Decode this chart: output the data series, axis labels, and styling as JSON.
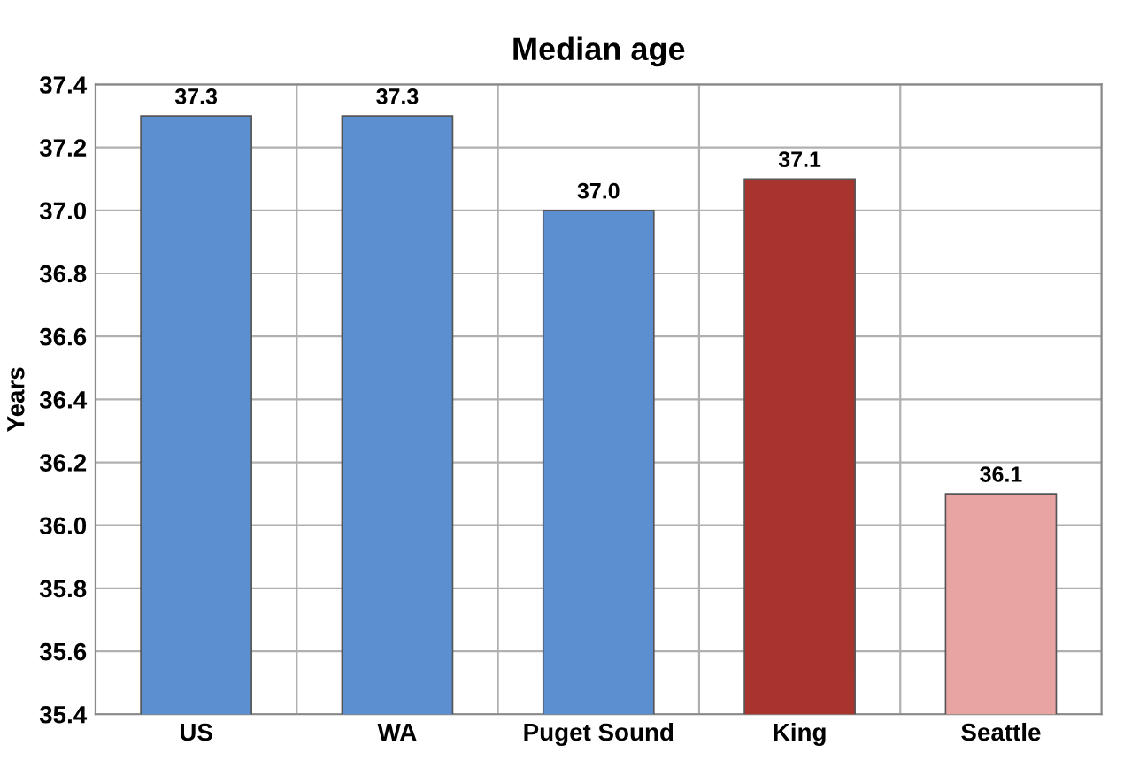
{
  "chart_data": {
    "type": "bar",
    "title": "Median age",
    "ylabel": "Years",
    "categories": [
      "US",
      "WA",
      "Puget Sound",
      "King",
      "Seattle"
    ],
    "values": [
      37.3,
      37.3,
      37.0,
      37.1,
      36.1
    ],
    "value_labels": [
      "37.3",
      "37.3",
      "37.0",
      "37.1",
      "36.1"
    ],
    "colors": [
      "#5b8fd0",
      "#5b8fd0",
      "#5b8fd0",
      "#a8352d",
      "#e8a3a3"
    ],
    "ylim": [
      35.4,
      37.4
    ],
    "yticks": [
      35.4,
      35.6,
      35.8,
      {
        "value": 36.0,
        "label": "36.0"
      },
      36.2,
      36.4,
      36.6,
      36.8,
      {
        "value": 37.0,
        "label": "37.0"
      },
      37.2,
      37.4
    ],
    "grid": true
  }
}
